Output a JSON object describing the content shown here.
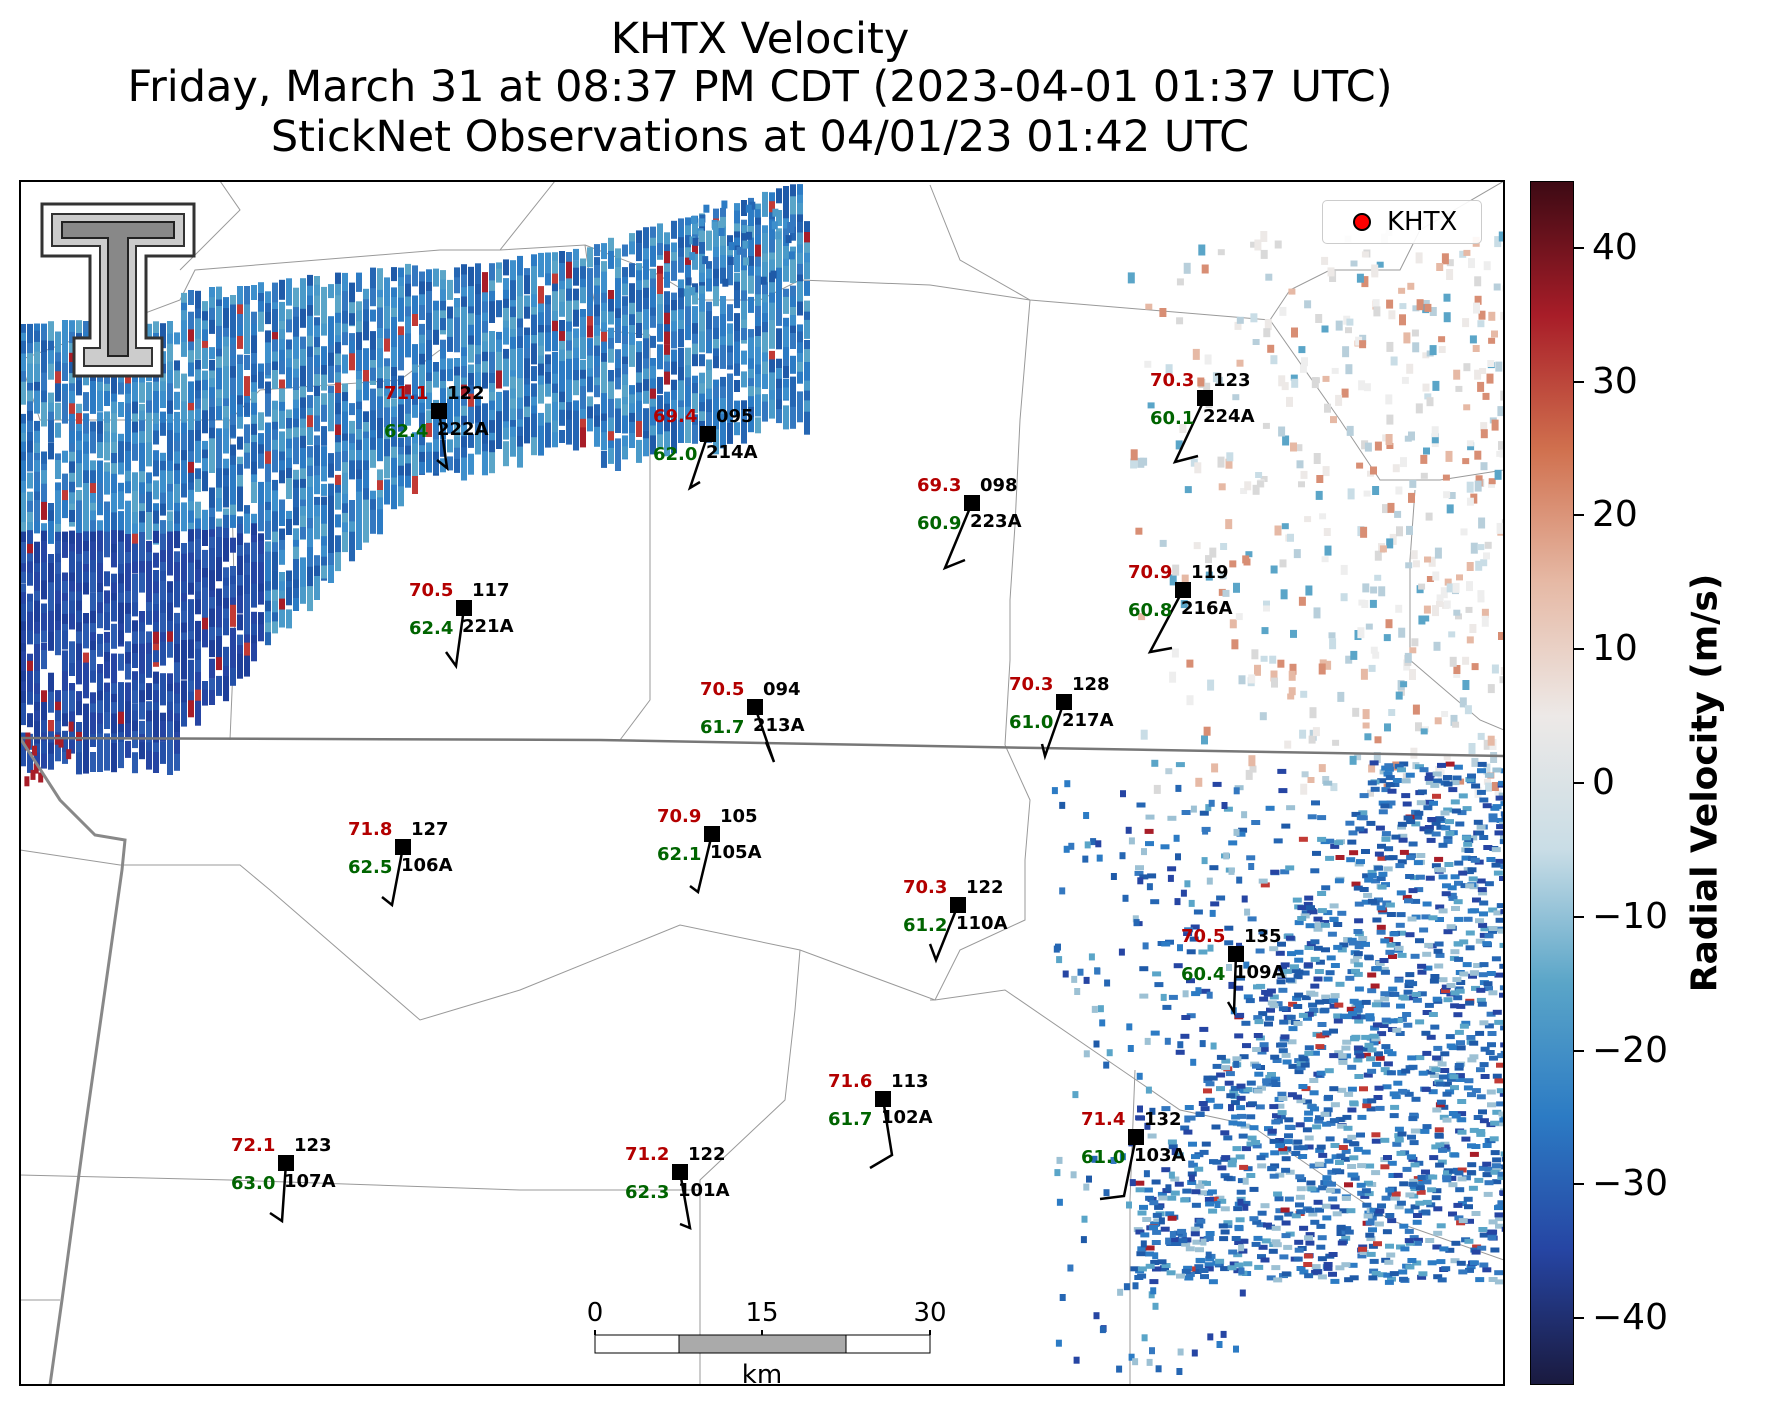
{
  "title": {
    "line1": "KHTX Velocity",
    "line2": "Friday, March 31 at 08:37 PM CDT (2023-04-01 01:37 UTC)",
    "line3": "StickNet Observations at 04/01/23 01:42 UTC"
  },
  "legend": {
    "label": "KHTX",
    "marker_color": "#ff0000"
  },
  "colorbar": {
    "label": "Radial Velocity (m/s)",
    "range": [
      -45,
      45
    ],
    "ticks": [
      "40",
      "30",
      "20",
      "10",
      "0",
      "−10",
      "−20",
      "−30",
      "−40"
    ],
    "colors": [
      "#1a1a3f",
      "#2645a3",
      "#2c7bc4",
      "#5aa5c8",
      "#c9dde6",
      "#ede9e7",
      "#e6b9a5",
      "#d0704e",
      "#a81d28",
      "#3d0a14"
    ]
  },
  "scalebar": {
    "ticks": [
      "0",
      "15",
      "30"
    ],
    "unit": "km"
  },
  "colors": {
    "temperature": "#b30000",
    "dewpoint": "#006400",
    "station": "#000000"
  },
  "stations": [
    {
      "id": "222A",
      "temp": "71.1",
      "dewp": "62.4",
      "pressure": "122"
    },
    {
      "id": "214A",
      "temp": "69.4",
      "dewp": "62.0",
      "pressure": "095"
    },
    {
      "id": "223A",
      "temp": "69.3",
      "dewp": "60.9",
      "pressure": "098"
    },
    {
      "id": "224A",
      "temp": "70.3",
      "dewp": "60.1",
      "pressure": "123"
    },
    {
      "id": "221A",
      "temp": "70.5",
      "dewp": "62.4",
      "pressure": "117"
    },
    {
      "id": "216A",
      "temp": "70.9",
      "dewp": "60.8",
      "pressure": "119"
    },
    {
      "id": "213A",
      "temp": "70.5",
      "dewp": "61.7",
      "pressure": "094"
    },
    {
      "id": "217A",
      "temp": "70.3",
      "dewp": "61.0",
      "pressure": "128"
    },
    {
      "id": "106A",
      "temp": "71.8",
      "dewp": "62.5",
      "pressure": "127"
    },
    {
      "id": "105A",
      "temp": "70.9",
      "dewp": "62.1",
      "pressure": "105"
    },
    {
      "id": "110A",
      "temp": "70.3",
      "dewp": "61.2",
      "pressure": "122"
    },
    {
      "id": "109A",
      "temp": "70.5",
      "dewp": "60.4",
      "pressure": "135"
    },
    {
      "id": "102A",
      "temp": "71.6",
      "dewp": "61.7",
      "pressure": "113"
    },
    {
      "id": "103A",
      "temp": "71.4",
      "dewp": "61.0",
      "pressure": "132"
    },
    {
      "id": "107A",
      "temp": "72.1",
      "dewp": "63.0",
      "pressure": "123"
    },
    {
      "id": "101A",
      "temp": "71.2",
      "dewp": "62.3",
      "pressure": "122"
    }
  ]
}
